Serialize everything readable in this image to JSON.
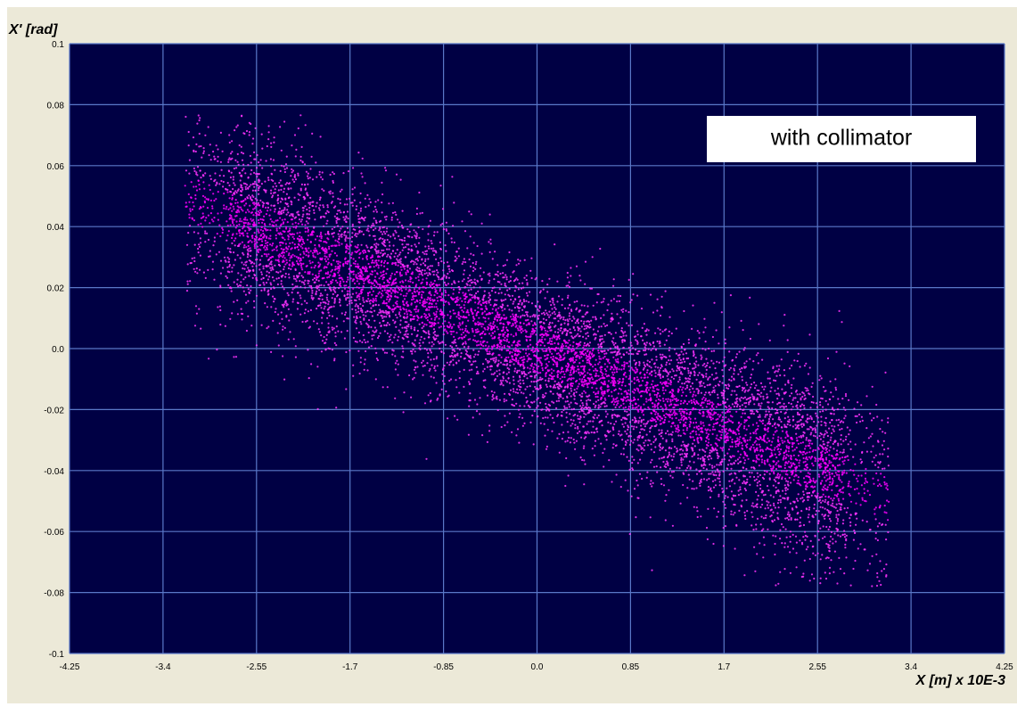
{
  "colors": {
    "panel": "#ece9d8",
    "plot_bg": "#000044",
    "grid": "#5a78c8",
    "points": "#ff33ff",
    "points_core": "#ff00ff",
    "annotation_bg": "#ffffff"
  },
  "chart_data": {
    "type": "scatter",
    "title": "",
    "xlabel": "X [m] x 10E-3",
    "ylabel": "X' [rad]",
    "xlim": [
      -4.25,
      4.25
    ],
    "ylim": [
      -0.1,
      0.1
    ],
    "x_ticks": [
      "-4.25",
      "-3.4",
      "-2.55",
      "-1.7",
      "-0.85",
      "0.0",
      "0.85",
      "1.7",
      "2.55",
      "3.4",
      "4.25"
    ],
    "y_ticks": [
      "0.1",
      "0.08",
      "0.06",
      "0.04",
      "0.02",
      "0.0",
      "-0.02",
      "-0.04",
      "-0.06",
      "-0.08",
      "-0.1"
    ],
    "grid": true,
    "annotation": "with collimator",
    "distribution": {
      "center_x": 0.0,
      "center_y": 0.0,
      "x_extent": [
        -3.2,
        3.2
      ],
      "y_extent": [
        -0.078,
        0.077
      ],
      "correlation": "negative",
      "slope_y_per_x": -0.0155
    }
  }
}
